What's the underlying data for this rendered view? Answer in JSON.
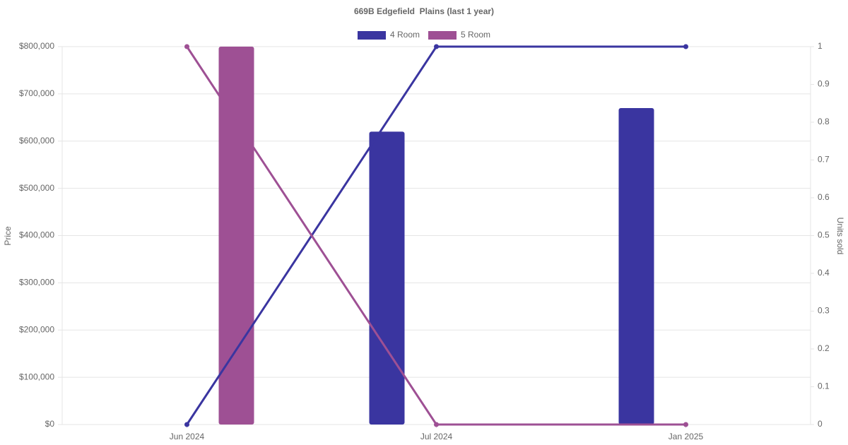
{
  "chart_data": {
    "type": "bar-line",
    "title": "669B Edgefield  Plains (last 1 year)",
    "categories": [
      "Jun 2024",
      "Jul 2024",
      "Jan 2025"
    ],
    "series": [
      {
        "name": "4 Room",
        "color": "#3a35a0",
        "values": [
          null,
          620000,
          670000
        ],
        "units": [
          0,
          1,
          1
        ]
      },
      {
        "name": "5 Room",
        "color": "#9e5094",
        "values": [
          800000,
          null,
          null
        ],
        "units": [
          1,
          0,
          0
        ]
      }
    ],
    "y_label": "Price",
    "y2_label": "Units sold",
    "ylim": [
      0,
      800000
    ],
    "yticks": [
      {
        "value": 0,
        "label": "$0"
      },
      {
        "value": 100000,
        "label": "$100,000"
      },
      {
        "value": 200000,
        "label": "$200,000"
      },
      {
        "value": 300000,
        "label": "$300,000"
      },
      {
        "value": 400000,
        "label": "$400,000"
      },
      {
        "value": 500000,
        "label": "$500,000"
      },
      {
        "value": 600000,
        "label": "$600,000"
      },
      {
        "value": 700000,
        "label": "$700,000"
      },
      {
        "value": 800000,
        "label": "$800,000"
      }
    ],
    "y2lim": [
      0,
      1
    ],
    "y2ticks": [
      0,
      0.1,
      0.2,
      0.3,
      0.4,
      0.5,
      0.6,
      0.7,
      0.8,
      0.9,
      1
    ],
    "grid": true,
    "legend": "top"
  }
}
